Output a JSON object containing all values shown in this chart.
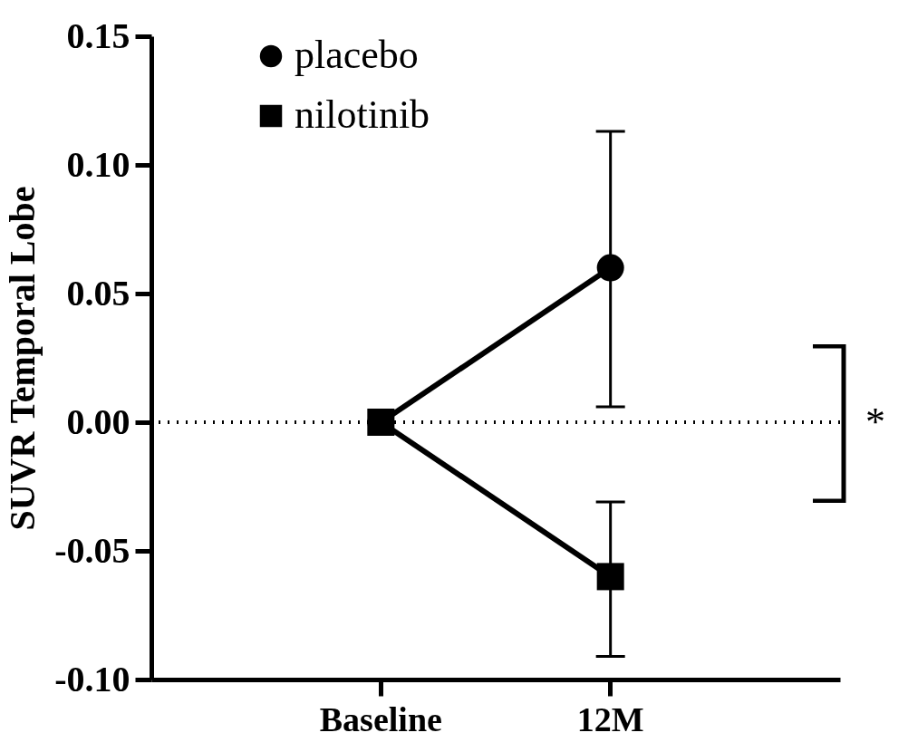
{
  "chart_data": {
    "type": "line",
    "ylabel": "SUVR Temporal Lobe",
    "categories": [
      "Baseline",
      "12M"
    ],
    "series": [
      {
        "name": "placebo",
        "color": "#000000",
        "marker": "circle",
        "values": [
          0,
          0.06
        ],
        "errors": [
          null,
          [
            0.006,
            0.113
          ]
        ]
      },
      {
        "name": "nilotinib",
        "color": "#000000",
        "marker": "square",
        "values": [
          0,
          -0.06
        ],
        "errors": [
          null,
          [
            -0.091,
            -0.031
          ]
        ]
      }
    ],
    "ylim": [
      -0.1,
      0.15
    ],
    "yticks": [
      {
        "value": -0.1,
        "label": "-0.10"
      },
      {
        "value": -0.05,
        "label": "-0.05"
      },
      {
        "value": 0,
        "label": "0.00"
      },
      {
        "value": 0.05,
        "label": "0.05"
      },
      {
        "value": 0.1,
        "label": "0.10"
      },
      {
        "value": 0.15,
        "label": "0.15"
      }
    ],
    "ref_lines": [
      {
        "axis": "y",
        "value": 0,
        "line_style": "dotted"
      }
    ],
    "annotations": [
      "*"
    ],
    "legend": "top left",
    "grid": false
  }
}
